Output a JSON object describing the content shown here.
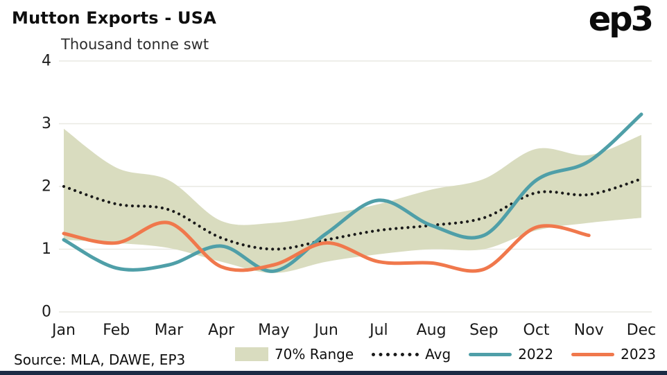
{
  "header": {
    "logo": "ep3"
  },
  "source": "Source: MLA, DAWE, EP3",
  "colors": {
    "background": "#ffffff",
    "grid": "#e9e9e2",
    "text": "#111111",
    "footer_bar": "#1c2b45"
  },
  "chart_data": {
    "type": "line",
    "title": "Mutton Exports - USA",
    "subtitle": "Thousand tonne swt",
    "categories": [
      "Jan",
      "Feb",
      "Mar",
      "Apr",
      "May",
      "Jun",
      "Jul",
      "Aug",
      "Sep",
      "Oct",
      "Nov",
      "Dec"
    ],
    "ylim": [
      0,
      4
    ],
    "yticks": [
      0,
      1,
      2,
      3,
      4
    ],
    "grid": "horizontal",
    "legend_position": "bottom",
    "series": [
      {
        "name": "70% Range",
        "kind": "band",
        "color": "#d9dcbf",
        "upper": [
          2.92,
          2.3,
          2.1,
          1.45,
          1.42,
          1.55,
          1.72,
          1.95,
          2.12,
          2.6,
          2.5,
          2.82
        ],
        "lower": [
          1.15,
          1.1,
          1.02,
          0.8,
          0.62,
          0.8,
          0.92,
          1.0,
          1.0,
          1.3,
          1.42,
          1.5
        ]
      },
      {
        "name": "Avg",
        "kind": "dotted-line",
        "color": "#1a1a1a",
        "values": [
          2.0,
          1.72,
          1.63,
          1.18,
          1.0,
          1.15,
          1.3,
          1.38,
          1.5,
          1.9,
          1.87,
          2.12
        ]
      },
      {
        "name": "2022",
        "kind": "line",
        "color": "#4f9fa8",
        "values": [
          1.15,
          0.7,
          0.75,
          1.05,
          0.65,
          1.25,
          1.78,
          1.38,
          1.22,
          2.1,
          2.4,
          3.15
        ]
      },
      {
        "name": "2023",
        "kind": "line",
        "color": "#f0784c",
        "values": [
          1.25,
          1.1,
          1.42,
          0.72,
          0.75,
          1.1,
          0.8,
          0.78,
          0.68,
          1.35,
          1.22
        ]
      }
    ]
  }
}
